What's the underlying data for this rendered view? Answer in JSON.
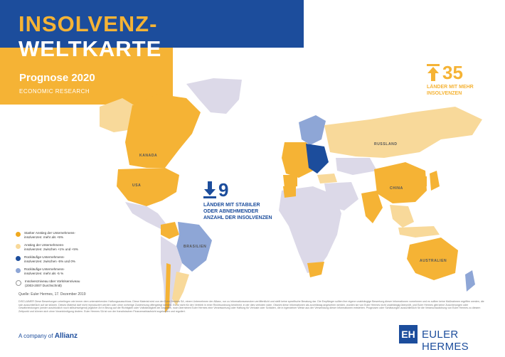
{
  "header": {
    "title_line1": "INSOLVENZ-",
    "title_line2": "WELTKARTE",
    "subtitle": "Prognose 2020",
    "department": "ECONOMIC RESEARCH"
  },
  "stats": {
    "up": {
      "number": "35",
      "label_lines": [
        "LÄNDER MIT MEHR",
        "INSOLVENZEN"
      ],
      "icon": "arrow-up-icon"
    },
    "down": {
      "number": "9",
      "label_lines": [
        "LÄNDER MIT STABILER",
        "ODER ABNEHMENDER",
        "ANZAHL DER INSOLVENZEN"
      ],
      "icon": "arrow-down-icon"
    }
  },
  "map_labels": {
    "kanada": "KANADA",
    "usa": "USA",
    "brasilien": "BRASILIEN",
    "russland": "RUSSLAND",
    "china": "CHINA",
    "australien": "AUSTRALIEN"
  },
  "legend": {
    "items": [
      {
        "text": "Starker Anstieg der Unternehmens-\ninsolvenzen: mehr als +5%",
        "color": "#f0a91f"
      },
      {
        "text": "Anstieg der Unternehmens-\ninsolvenzen: zwischen +1% und +5%",
        "color": "#f8d99a"
      },
      {
        "text": "Rückläufige Unternehmens-\ninsolvenzen: zwischen -5% und 0%",
        "color": "#1c4d9c"
      },
      {
        "text": "Rückläufige Unternehmens-\ninsolvenzen: mehr als -5 %",
        "color": "#8ea6d6"
      },
      {
        "text": "Insolvenzniveau über Vorkrisenniveau\n(2003-2007 Durchschnitt)",
        "color": "#ffffff"
      }
    ]
  },
  "source": "Quelle: Euler Hermes, 17. Dezember 2019",
  "disclaimer": "DISCLAIMER Diese Bewertungen unterliegen wie immer dem untenstehenden Haftungsausschluss. Diese Material wird von der Euler Hermes SA, einem Unternehmen der Allianz, nur zu Informationszwecken veröffentlicht und stellt keine spezifische Beratung dar. Die Empfänger sollten ihre eigene unabhängige Bewertung dieser Informationen vornehmen und es sollten keine Maßnahmen ergriffen werden, die sich ausschließlich auf sie stützen. Dieses Material darf nicht reproduziert werden oder ohne vorherige Zustimmung offengelegt werden. Es ist nicht für den Vertrieb in einer Rechtsordnung bestimmt, in der dies verboten wäre. Obwohl diese Informationen als zuverlässig angesehen werden, wurden sie von Euler Hermes nicht unabhängig überprüft, und Euler Hermes gibt keine Zusicherungen oder Gewährleistungen (weder ausdrücklich noch stillschweigend) jeglicher Art in Bezug auf die Richtigkeit oder Vollständigkeit der Angaben, noch übernimmt Euler Hermes eine Verantwortung oder Haftung für Verluste oder Schäden, die in irgendeiner Weise aus der Verwendung dieser Informationen entstehen. Prognosen oder Schätzungen ausschließlich für die Veranschaulichung von Euler Hermes zu diesem Zeitpunkt und können sich ohne Vorankündigung ändern. Euler Hermes SA ist von der französischen Finanzmarktaufsicht zugelassen und reguliert.",
  "company_prefix": "A company of",
  "company_name": "Allianz",
  "brand_initials": "EH",
  "brand_name": "EULER HERMES",
  "colors": {
    "blue": "#1c4d9c",
    "orange": "#f5b335",
    "land_gray": "#dcd9e8"
  }
}
